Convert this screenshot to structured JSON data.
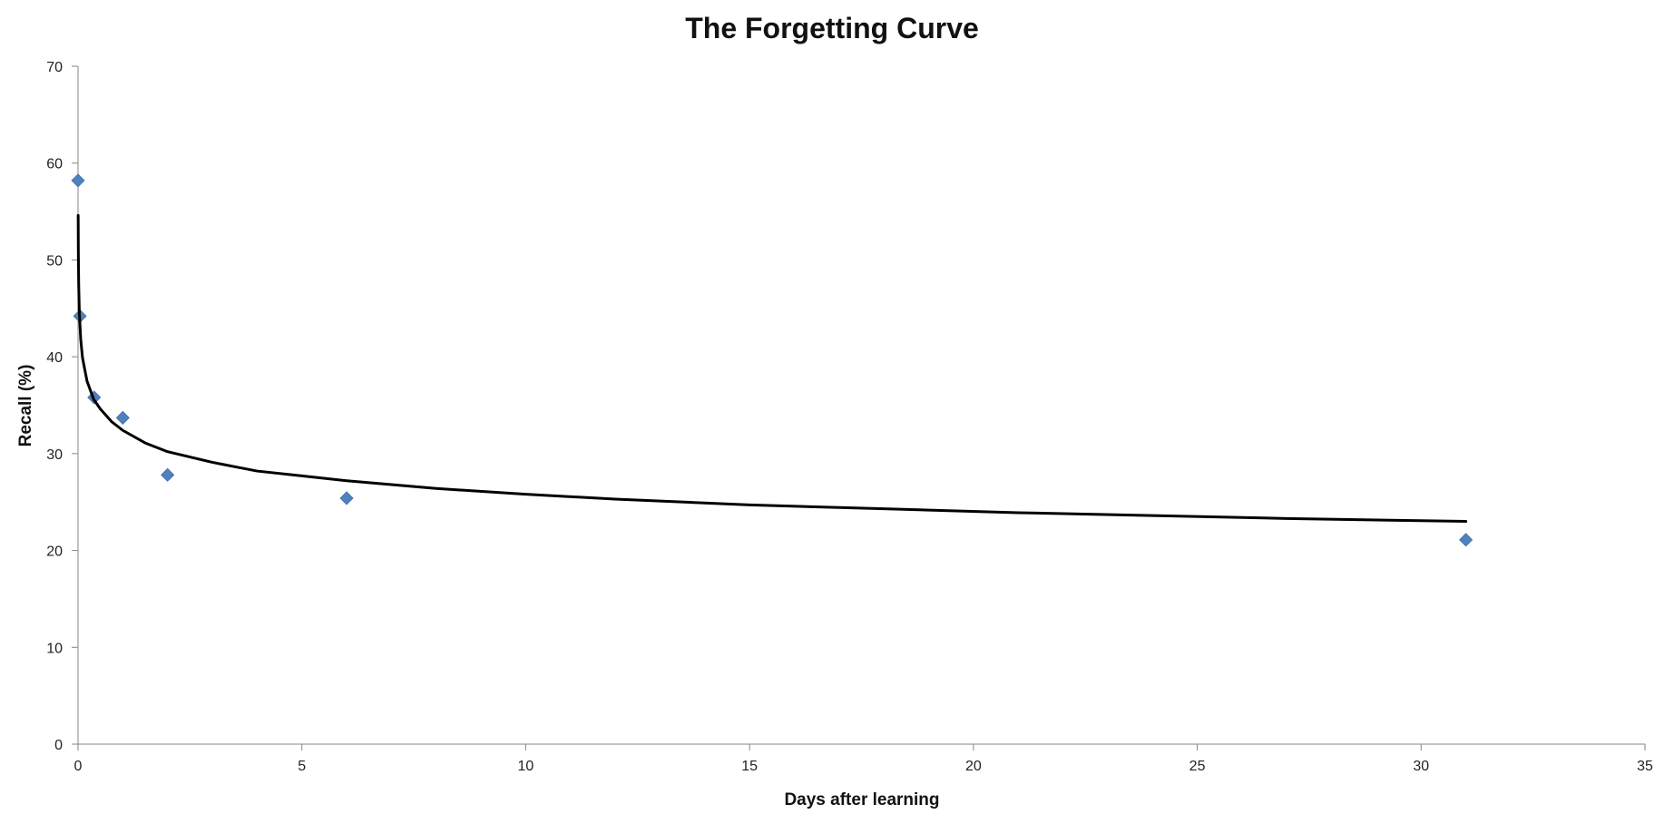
{
  "chart_data": {
    "type": "scatter",
    "title": "The Forgetting Curve",
    "xlabel": "Days after learning",
    "ylabel": "Recall (%)",
    "xlim": [
      0,
      35
    ],
    "ylim": [
      0,
      70
    ],
    "x_ticks": [
      0,
      5,
      10,
      15,
      20,
      25,
      30,
      35
    ],
    "y_ticks": [
      0,
      10,
      20,
      30,
      40,
      50,
      60,
      70
    ],
    "grid": false,
    "legend": "none",
    "series": [
      {
        "kind": "points",
        "marker": "diamond",
        "color": "#4f81bd",
        "x": [
          0.0,
          0.042,
          0.36,
          1,
          2,
          6,
          31
        ],
        "y": [
          58.2,
          44.2,
          35.8,
          33.7,
          27.8,
          25.4,
          21.1
        ]
      },
      {
        "kind": "trendline",
        "trend": "power",
        "color": "#000000",
        "x": [
          0.003,
          0.007,
          0.015,
          0.03,
          0.06,
          0.1,
          0.2,
          0.35,
          0.5,
          0.75,
          1,
          1.5,
          2,
          3,
          4,
          5,
          6,
          8,
          10,
          12,
          15,
          18,
          21,
          24,
          27,
          31
        ],
        "y": [
          54.6,
          50.7,
          47.4,
          44.5,
          41.8,
          39.9,
          37.5,
          35.6,
          34.6,
          33.3,
          32.4,
          31.1,
          30.2,
          29.1,
          28.2,
          27.7,
          27.2,
          26.4,
          25.8,
          25.3,
          24.7,
          24.3,
          23.9,
          23.6,
          23.3,
          23.0
        ]
      }
    ]
  }
}
